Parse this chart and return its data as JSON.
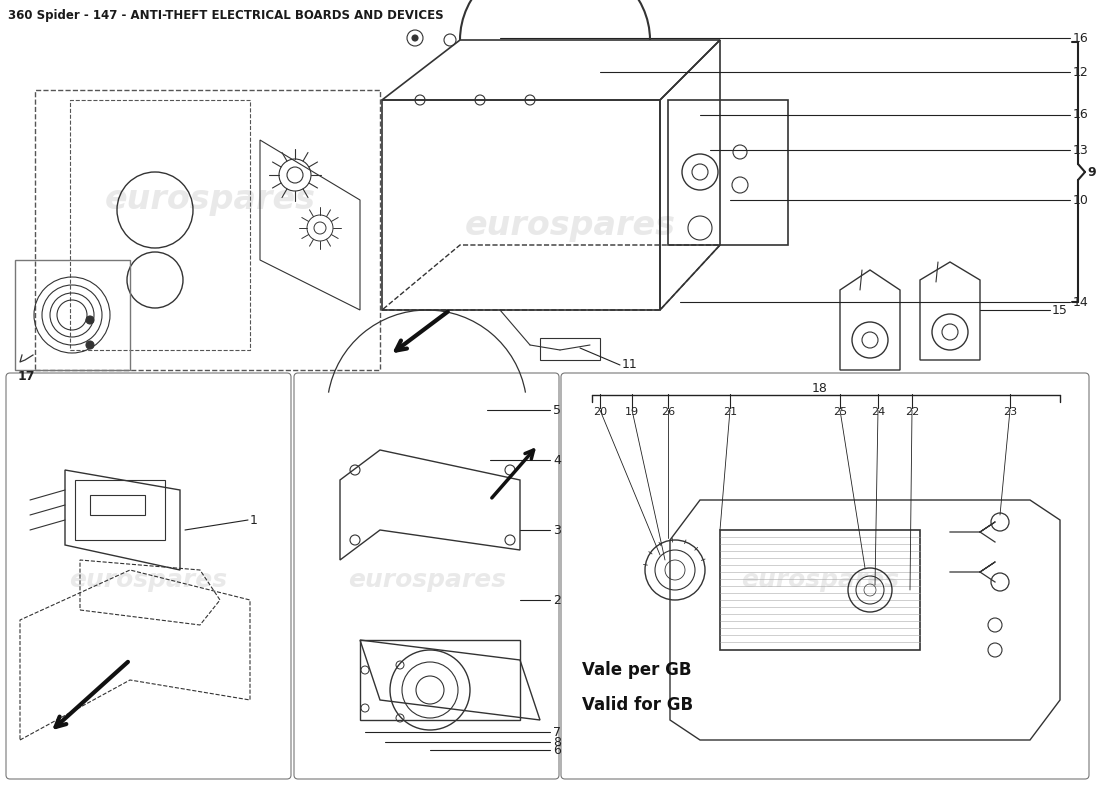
{
  "title": "360 Spider - 147 - ANTI-THEFT ELECTRICAL BOARDS AND DEVICES",
  "title_fontsize": 8.5,
  "title_color": "#1a1a1a",
  "bg_color": "#ffffff",
  "line_color": "#222222",
  "watermark_color": "#d0d0d0",
  "watermark_alpha": 0.45,
  "sketch_color": "#333333",
  "dashed_color": "#555555",
  "panel_border_color": "#777777",
  "bottom_right_text1": "Vale per GB",
  "bottom_right_text2": "Valid for GB"
}
